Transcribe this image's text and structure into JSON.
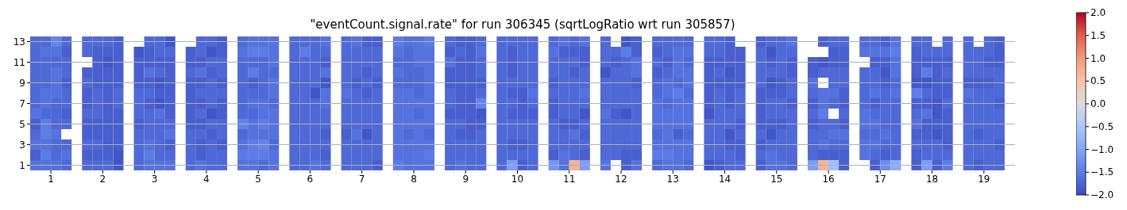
{
  "chart_data": {
    "type": "heatmap",
    "title": "\"eventCount.signal.rate\" for run 306345 (sqrtLogRatio wrt run 305857)",
    "x": [
      0.7,
      0.9,
      1.1,
      1.3,
      1.7,
      1.9,
      2.1,
      2.3,
      2.7,
      2.9,
      3.1,
      3.3,
      3.7,
      3.9,
      4.1,
      4.3,
      4.7,
      4.9,
      5.1,
      5.3,
      5.7,
      5.9,
      6.1,
      6.3,
      6.7,
      6.9,
      7.1,
      7.3,
      7.7,
      7.9,
      8.1,
      8.3,
      8.7,
      8.9,
      9.1,
      9.3,
      9.7,
      9.9,
      10.1,
      10.3,
      10.7,
      10.9,
      11.1,
      11.3,
      11.7,
      11.9,
      12.1,
      12.3,
      12.7,
      12.9,
      13.1,
      13.3,
      13.7,
      13.9,
      14.1,
      14.3,
      14.7,
      14.9,
      15.1,
      15.3,
      15.7,
      15.9,
      16.1,
      16.3,
      16.7,
      16.9,
      17.1,
      17.3,
      17.7,
      17.9,
      18.1,
      18.3,
      18.7,
      18.9,
      19.1,
      19.3
    ],
    "xlim": [
      0.6,
      19.6
    ],
    "xticks": [
      1,
      2,
      3,
      4,
      5,
      6,
      7,
      8,
      9,
      10,
      11,
      12,
      13,
      14,
      15,
      16,
      17,
      18,
      19
    ],
    "y_categories": [
      "13",
      null,
      "11",
      null,
      "9",
      null,
      "7",
      null,
      "5",
      null,
      "3",
      null,
      "1"
    ],
    "grid": "y",
    "clim": [
      -2,
      2
    ],
    "cticks": [
      {
        "value": -2,
        "label": "−2.0"
      },
      {
        "value": -1.5,
        "label": "−1.5"
      },
      {
        "value": -1,
        "label": "−1.0"
      },
      {
        "value": -0.5,
        "label": "−0.5"
      },
      {
        "value": 0,
        "label": "0.0"
      },
      {
        "value": 0.5,
        "label": "0.5"
      },
      {
        "value": 1,
        "label": "1.0"
      },
      {
        "value": 1.5,
        "label": "1.5"
      },
      {
        "value": 2,
        "label": "2.0"
      }
    ],
    "cells": [
      [
        -1.7,
        -1.7,
        -1.4,
        -1.7,
        -1.7,
        -1.7,
        -1.7,
        -1.8,
        null,
        -1.7,
        -1.7,
        -1.9,
        null,
        -1.7,
        -1.7,
        -1.8,
        -1.7,
        -1.6,
        -1.6,
        -1.6,
        -1.7,
        -1.7,
        -1.7,
        -1.6,
        -1.7,
        -1.6,
        -1.8,
        -1.8,
        -1.5,
        -1.6,
        -1.6,
        -1.5,
        -1.7,
        -1.8,
        -1.8,
        -1.7,
        -1.7,
        -1.7,
        -1.7,
        -1.7,
        -1.7,
        -1.6,
        -1.7,
        -1.6,
        -1.7,
        null,
        -1.9,
        -1.8,
        -1.7,
        -1.7,
        -1.7,
        -1.7,
        -1.7,
        -1.7,
        -1.8,
        null,
        -1.8,
        -1.7,
        -1.7,
        -1.6,
        null,
        -1.8,
        -1.7,
        -1.7,
        -1.7,
        -1.7,
        -1.8,
        -1.6,
        -1.7,
        -1.7,
        null,
        -1.7,
        -1.7,
        null,
        -1.7,
        -1.8
      ],
      [
        -1.7,
        -1.6,
        -1.6,
        -1.8,
        -1.7,
        -1.8,
        -1.8,
        -1.8,
        -1.9,
        -1.8,
        -1.7,
        -1.7,
        -1.8,
        -1.7,
        -1.9,
        -1.8,
        -1.6,
        -1.5,
        -1.5,
        -1.6,
        -1.7,
        -1.5,
        -1.7,
        -1.7,
        -1.7,
        -1.7,
        -1.7,
        -1.7,
        -1.6,
        -1.7,
        -1.6,
        -1.6,
        -1.8,
        -1.7,
        -1.8,
        -1.6,
        -1.7,
        -1.8,
        -1.7,
        -1.7,
        -1.6,
        -1.8,
        -1.8,
        -1.8,
        -1.7,
        -1.7,
        -1.5,
        -1.8,
        -1.8,
        -1.7,
        -1.6,
        -1.6,
        -1.7,
        -1.7,
        -1.8,
        -1.8,
        -1.7,
        -1.9,
        -1.7,
        -1.7,
        null,
        null,
        -1.8,
        -1.8,
        -1.6,
        -1.6,
        -1.6,
        -1.5,
        -1.8,
        -1.7,
        -1.7,
        -1.7,
        -1.7,
        -1.7,
        -1.7,
        -1.8
      ],
      [
        -1.7,
        -1.7,
        -1.7,
        -1.7,
        null,
        -1.8,
        -1.9,
        -1.8,
        -1.8,
        -1.8,
        -1.8,
        -1.8,
        -1.8,
        -1.8,
        -1.7,
        -1.7,
        -1.7,
        -1.7,
        -1.7,
        -1.6,
        -1.7,
        -1.7,
        -1.7,
        -1.8,
        -1.7,
        -1.7,
        -1.7,
        -1.7,
        -1.7,
        -1.7,
        -1.6,
        -1.6,
        -1.6,
        -1.8,
        -1.8,
        -1.7,
        -1.7,
        -1.8,
        -1.7,
        -1.7,
        -1.7,
        -1.7,
        -1.7,
        -1.8,
        -1.7,
        -1.8,
        -1.7,
        -1.6,
        -1.7,
        -1.8,
        -1.6,
        -1.7,
        -1.8,
        -1.8,
        -1.8,
        -1.8,
        -1.7,
        -1.8,
        -1.7,
        -1.8,
        -1.8,
        -1.9,
        -1.8,
        -1.8,
        null,
        -1.8,
        -1.8,
        -1.6,
        -1.8,
        -1.8,
        -1.8,
        -1.8,
        -1.7,
        -1.7,
        -1.8,
        -1.8
      ],
      [
        -1.7,
        -1.7,
        -1.6,
        -1.7,
        -1.8,
        -1.8,
        -1.8,
        -1.8,
        -1.8,
        -1.6,
        -1.7,
        -1.8,
        -1.7,
        -1.6,
        -1.8,
        -1.7,
        -1.7,
        -1.5,
        -1.7,
        -1.7,
        -1.7,
        -1.7,
        -1.7,
        -1.6,
        -1.7,
        -1.7,
        -1.8,
        -1.7,
        -1.6,
        -1.7,
        -1.7,
        -1.6,
        -1.8,
        -1.8,
        -1.8,
        -1.7,
        -1.7,
        -1.8,
        -1.7,
        -1.7,
        -1.7,
        -1.7,
        -1.8,
        -1.7,
        -1.9,
        -1.7,
        -1.7,
        -1.6,
        -1.8,
        -1.7,
        -1.6,
        -1.6,
        -1.8,
        -1.7,
        -1.9,
        -1.8,
        -1.7,
        -1.7,
        -1.7,
        -1.8,
        -1.8,
        -1.7,
        -1.7,
        -1.7,
        -1.7,
        -1.7,
        -1.9,
        -1.6,
        -1.8,
        -1.5,
        -1.8,
        -1.7,
        -1.7,
        -1.7,
        -1.7,
        -1.7
      ],
      [
        -1.7,
        -1.7,
        -1.6,
        -1.8,
        -1.7,
        -1.8,
        -1.8,
        -1.8,
        -1.8,
        -1.8,
        -1.9,
        -1.8,
        -1.8,
        -1.8,
        -1.7,
        -1.8,
        -1.7,
        -1.8,
        -1.7,
        -1.6,
        -1.7,
        -1.7,
        -1.7,
        -1.9,
        -1.7,
        -1.8,
        -1.7,
        -1.8,
        -1.7,
        -1.7,
        -1.7,
        -1.6,
        -1.8,
        -1.8,
        -1.8,
        -1.8,
        -1.7,
        -1.7,
        -1.7,
        -1.7,
        -1.8,
        -1.7,
        -1.7,
        -1.7,
        -1.7,
        -1.7,
        -1.7,
        -1.8,
        -1.7,
        -1.6,
        -1.7,
        -1.6,
        -1.8,
        -1.8,
        -1.8,
        -1.8,
        -1.7,
        -1.9,
        -1.8,
        -1.7,
        -1.6,
        null,
        -1.7,
        -1.7,
        -1.7,
        -1.7,
        -1.8,
        -1.7,
        -1.9,
        -1.9,
        -1.8,
        -1.8,
        -1.8,
        -1.8,
        -1.8,
        -1.7
      ],
      [
        -1.7,
        -1.6,
        -1.6,
        -1.7,
        -1.8,
        -1.7,
        -1.8,
        -1.7,
        -1.7,
        -1.7,
        -1.8,
        -1.8,
        -1.8,
        -1.7,
        -1.7,
        -1.7,
        -1.7,
        -1.7,
        -1.7,
        -1.6,
        -1.7,
        -1.7,
        -1.9,
        -1.6,
        -1.6,
        -1.7,
        -1.8,
        -1.7,
        -1.6,
        -1.6,
        -1.7,
        -1.6,
        -1.7,
        -1.8,
        -1.8,
        -1.7,
        -1.7,
        -1.8,
        -1.8,
        -1.6,
        -1.7,
        -1.7,
        -1.7,
        -1.6,
        -1.7,
        -1.7,
        -1.7,
        -1.7,
        -1.7,
        -1.6,
        -1.5,
        -1.7,
        -1.8,
        -1.7,
        -1.8,
        -1.7,
        -1.8,
        -1.8,
        -1.8,
        -1.7,
        -1.7,
        -1.6,
        -1.6,
        -1.8,
        -1.7,
        -1.6,
        -1.7,
        -1.6,
        -1.5,
        -1.7,
        -1.8,
        -1.8,
        -1.6,
        -1.7,
        -1.7,
        -1.7
      ],
      [
        -1.7,
        -1.6,
        -1.7,
        -1.7,
        -1.8,
        -1.7,
        -1.8,
        -1.7,
        -1.7,
        -1.8,
        -1.9,
        -1.8,
        -1.8,
        -1.8,
        -1.7,
        -1.8,
        -1.7,
        -1.6,
        -1.6,
        -1.7,
        -1.7,
        -1.7,
        -1.7,
        -1.6,
        -1.7,
        -1.7,
        -1.7,
        -1.7,
        -1.6,
        -1.6,
        -1.6,
        -1.6,
        -1.7,
        -1.8,
        -1.8,
        -1.4,
        -1.7,
        -1.7,
        -1.8,
        -1.7,
        -1.8,
        -1.7,
        -1.7,
        -1.7,
        -1.7,
        -1.7,
        -1.7,
        -1.7,
        -1.6,
        -1.7,
        -1.6,
        -1.6,
        -1.8,
        -1.7,
        -1.8,
        -1.7,
        -1.8,
        -1.7,
        -1.7,
        -1.8,
        -1.8,
        -1.6,
        -1.7,
        -1.8,
        -1.7,
        -1.8,
        -1.7,
        -1.7,
        -1.8,
        -1.8,
        -1.9,
        -1.7,
        -1.7,
        -1.7,
        -1.7,
        -1.8
      ],
      [
        -1.6,
        -1.7,
        -1.7,
        -1.8,
        -1.7,
        -1.7,
        -1.8,
        -1.8,
        -1.7,
        -1.7,
        -1.6,
        -1.8,
        -1.8,
        -1.7,
        -1.9,
        -1.8,
        -1.7,
        -1.7,
        -1.6,
        -1.6,
        -1.7,
        -1.7,
        -1.7,
        -1.7,
        -1.7,
        -1.7,
        -1.7,
        -1.7,
        -1.6,
        -1.6,
        -1.7,
        -1.6,
        -1.8,
        -1.8,
        -1.8,
        -1.9,
        -1.7,
        -1.8,
        -1.8,
        -1.8,
        -1.8,
        -1.7,
        -1.7,
        -1.9,
        -1.6,
        -1.8,
        -1.9,
        -1.7,
        -1.6,
        -1.6,
        -1.6,
        -1.6,
        -1.9,
        -1.7,
        -1.7,
        -1.7,
        -1.8,
        -1.7,
        -1.7,
        -1.7,
        -1.7,
        -1.5,
        null,
        -1.7,
        -1.6,
        -1.7,
        -1.7,
        -1.7,
        -1.7,
        -1.6,
        -1.9,
        -1.8,
        -1.7,
        -1.7,
        -1.7,
        -1.7
      ],
      [
        -1.8,
        -1.5,
        -1.7,
        -1.7,
        -1.8,
        -1.8,
        -1.8,
        -1.8,
        -1.8,
        -1.7,
        -1.7,
        -1.7,
        -1.8,
        -1.8,
        -1.7,
        -1.7,
        -1.4,
        -1.6,
        -1.5,
        -1.6,
        -1.7,
        -1.7,
        -1.7,
        -1.7,
        -1.7,
        -1.7,
        -1.7,
        -1.7,
        -1.6,
        -1.6,
        -1.6,
        -1.6,
        -1.7,
        -1.7,
        -1.8,
        -1.8,
        -1.7,
        -1.7,
        -1.7,
        -1.7,
        -1.7,
        -1.8,
        -1.8,
        -1.7,
        -1.7,
        -1.7,
        -1.7,
        -1.7,
        -1.6,
        -1.6,
        -1.6,
        -1.6,
        -1.7,
        -1.7,
        -1.7,
        -1.8,
        -1.8,
        -1.8,
        -1.8,
        -1.7,
        -1.8,
        -1.7,
        -1.7,
        -1.8,
        -1.6,
        -1.6,
        -1.7,
        -1.7,
        -1.6,
        -1.8,
        -1.8,
        -1.8,
        -1.7,
        -1.7,
        -1.7,
        -1.7
      ],
      [
        -1.7,
        -1.5,
        -1.6,
        null,
        -1.8,
        -1.8,
        -1.8,
        -1.8,
        -1.7,
        -1.7,
        -1.7,
        -1.6,
        -1.7,
        -1.7,
        -1.8,
        -1.7,
        -1.7,
        -1.6,
        -1.6,
        -1.6,
        -1.7,
        -1.7,
        -1.7,
        -1.8,
        -1.8,
        -1.6,
        -1.9,
        -1.7,
        -1.6,
        -1.7,
        -1.6,
        -1.7,
        -1.7,
        -1.8,
        -1.8,
        -1.7,
        -1.7,
        -1.7,
        -1.7,
        -1.7,
        -1.7,
        -1.7,
        -1.6,
        -1.8,
        -1.7,
        -1.7,
        -1.7,
        -1.7,
        -1.7,
        -1.6,
        -1.8,
        -1.7,
        -1.7,
        -1.7,
        -1.9,
        -1.7,
        -1.7,
        -1.9,
        -1.7,
        -1.7,
        -1.7,
        -1.7,
        -1.6,
        -1.6,
        -1.7,
        -1.7,
        -1.6,
        -1.7,
        -1.8,
        -1.8,
        -1.9,
        -1.8,
        -1.7,
        -1.8,
        -1.7,
        -1.7
      ],
      [
        -1.6,
        -1.6,
        -1.7,
        -1.7,
        -1.7,
        -1.7,
        -1.8,
        -1.8,
        -1.7,
        -1.6,
        -1.7,
        -1.8,
        -1.7,
        -1.8,
        -1.7,
        -1.8,
        -1.6,
        -1.5,
        -1.4,
        -1.7,
        -1.7,
        -1.7,
        -1.7,
        -1.7,
        -1.7,
        -1.7,
        -1.7,
        -1.7,
        -1.6,
        -1.6,
        -1.6,
        -1.6,
        -1.7,
        -1.7,
        -1.7,
        -1.7,
        -1.7,
        -1.8,
        -1.8,
        -1.7,
        -1.7,
        -1.7,
        -1.7,
        -1.7,
        -1.7,
        -1.7,
        -1.7,
        -1.7,
        -1.6,
        -1.6,
        -1.6,
        -1.6,
        -1.7,
        -1.7,
        -1.8,
        -1.8,
        -1.8,
        -1.7,
        -1.7,
        -1.7,
        -1.7,
        -1.6,
        -1.7,
        -1.7,
        -1.6,
        -1.6,
        -1.7,
        -1.7,
        -1.7,
        -1.7,
        -1.7,
        -1.8,
        -1.7,
        -1.7,
        -1.7,
        -1.8
      ],
      [
        -1.8,
        -1.5,
        -1.7,
        -1.6,
        -1.8,
        -1.8,
        -1.8,
        -1.9,
        -1.7,
        -1.5,
        -1.7,
        -1.7,
        -1.7,
        -1.8,
        -1.7,
        -1.7,
        -1.5,
        -1.5,
        -1.5,
        -1.6,
        -1.7,
        -1.7,
        -1.7,
        -1.8,
        -1.7,
        -1.7,
        -1.7,
        -1.7,
        -1.6,
        -1.6,
        -1.6,
        -1.5,
        -1.7,
        -1.7,
        -1.7,
        -1.7,
        -1.7,
        -1.7,
        -1.7,
        -1.7,
        -1.8,
        -1.6,
        -1.7,
        -1.8,
        -1.7,
        -1.7,
        -1.8,
        -1.8,
        -1.5,
        -1.5,
        -1.6,
        -1.6,
        -1.7,
        -1.7,
        -1.7,
        -1.8,
        -1.7,
        -1.6,
        -1.7,
        -1.7,
        -1.7,
        -1.8,
        -1.8,
        -1.8,
        -1.6,
        -1.7,
        -1.8,
        -1.7,
        -1.8,
        -1.7,
        -1.7,
        -1.7,
        -1.7,
        -1.7,
        -1.7,
        -1.7
      ],
      [
        -1.6,
        -1.6,
        -1.6,
        -1.7,
        -1.7,
        -1.7,
        -1.7,
        -1.9,
        -1.7,
        -1.6,
        -1.6,
        -1.6,
        -1.7,
        -1.6,
        -1.7,
        -1.7,
        -1.6,
        -1.6,
        -1.7,
        -1.6,
        -1.7,
        -1.7,
        -1.6,
        -1.7,
        -1.7,
        -1.7,
        -1.7,
        -1.8,
        -1.5,
        -1.6,
        -1.6,
        -1.6,
        -1.7,
        -1.6,
        -1.7,
        -1.7,
        -1.7,
        -1.1,
        -1.8,
        -1.7,
        -1.2,
        -1.6,
        0.7,
        -1.1,
        -1.6,
        null,
        -1.8,
        -1.6,
        -1.7,
        -1.6,
        -1.6,
        -1.7,
        -1.9,
        -1.8,
        -1.7,
        -1.7,
        -1.8,
        -1.6,
        -1.6,
        -1.7,
        -1.1,
        0.7,
        -0.6,
        -1.8,
        null,
        -1.8,
        -1.3,
        -0.9,
        -1.8,
        -1.1,
        -1.8,
        -1.5,
        -1.7,
        -1.8,
        -1.7,
        -1.7
      ]
    ]
  }
}
